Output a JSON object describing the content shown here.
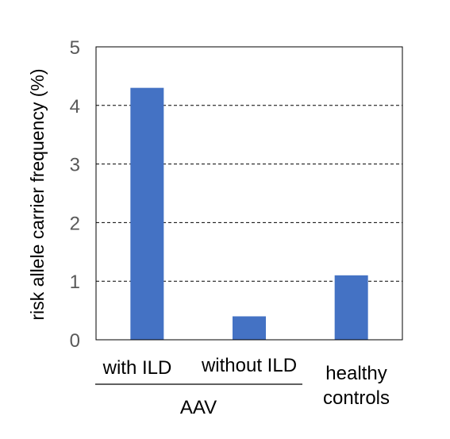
{
  "chart_data": {
    "type": "bar",
    "categories": [
      "with ILD",
      "without ILD",
      "healthy|controls"
    ],
    "values": [
      4.3,
      0.4,
      1.1
    ],
    "group_label": {
      "text": "AAV",
      "spans_categories": [
        0,
        1
      ]
    },
    "ylabel": "risk allele carrier frequency (%)",
    "xlabel": "",
    "title": "",
    "ylim": [
      0,
      5
    ],
    "yticks": [
      0,
      1,
      2,
      3,
      4,
      5
    ],
    "grid": "horizontal-dashed",
    "legend": "none",
    "colors": {
      "bar": "#4472c4",
      "axis": "#000000",
      "grid": "#000000",
      "tick_text": "#595959",
      "label_text": "#000000"
    }
  }
}
